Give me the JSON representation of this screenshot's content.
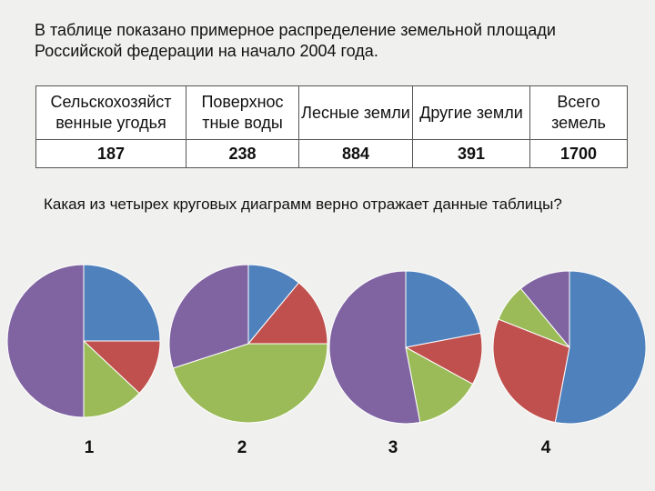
{
  "text": {
    "intro": "В таблице показано примерное распределение земельной площади Российской федерации на начало 2004 года.",
    "question": "Какая из четырех круговых диаграмм верно отражает данные таблицы?"
  },
  "table": {
    "headers": [
      "Сельскохозяйст венные угодья",
      "Поверхнос тные воды",
      "Лесные земли",
      "Другие земли",
      "Всего земель"
    ],
    "values": [
      "187",
      "238",
      "884",
      "391",
      "1700"
    ]
  },
  "colors": {
    "blue": "#4f81bd",
    "red": "#c0504d",
    "green": "#9bbb59",
    "purple": "#8064a2"
  },
  "chart_data": [
    {
      "type": "pie",
      "label": "1",
      "slices": [
        {
          "color": "blue",
          "value": 25
        },
        {
          "color": "red",
          "value": 12
        },
        {
          "color": "green",
          "value": 13
        },
        {
          "color": "purple",
          "value": 50
        }
      ]
    },
    {
      "type": "pie",
      "label": "2",
      "slices": [
        {
          "color": "blue",
          "value": 11
        },
        {
          "color": "red",
          "value": 14
        },
        {
          "color": "green",
          "value": 45
        },
        {
          "color": "purple",
          "value": 30
        }
      ]
    },
    {
      "type": "pie",
      "label": "3",
      "slices": [
        {
          "color": "blue",
          "value": 22
        },
        {
          "color": "red",
          "value": 11
        },
        {
          "color": "green",
          "value": 14
        },
        {
          "color": "purple",
          "value": 53
        }
      ]
    },
    {
      "type": "pie",
      "label": "4",
      "slices": [
        {
          "color": "blue",
          "value": 53
        },
        {
          "color": "red",
          "value": 28
        },
        {
          "color": "green",
          "value": 8
        },
        {
          "color": "purple",
          "value": 11
        }
      ]
    }
  ]
}
